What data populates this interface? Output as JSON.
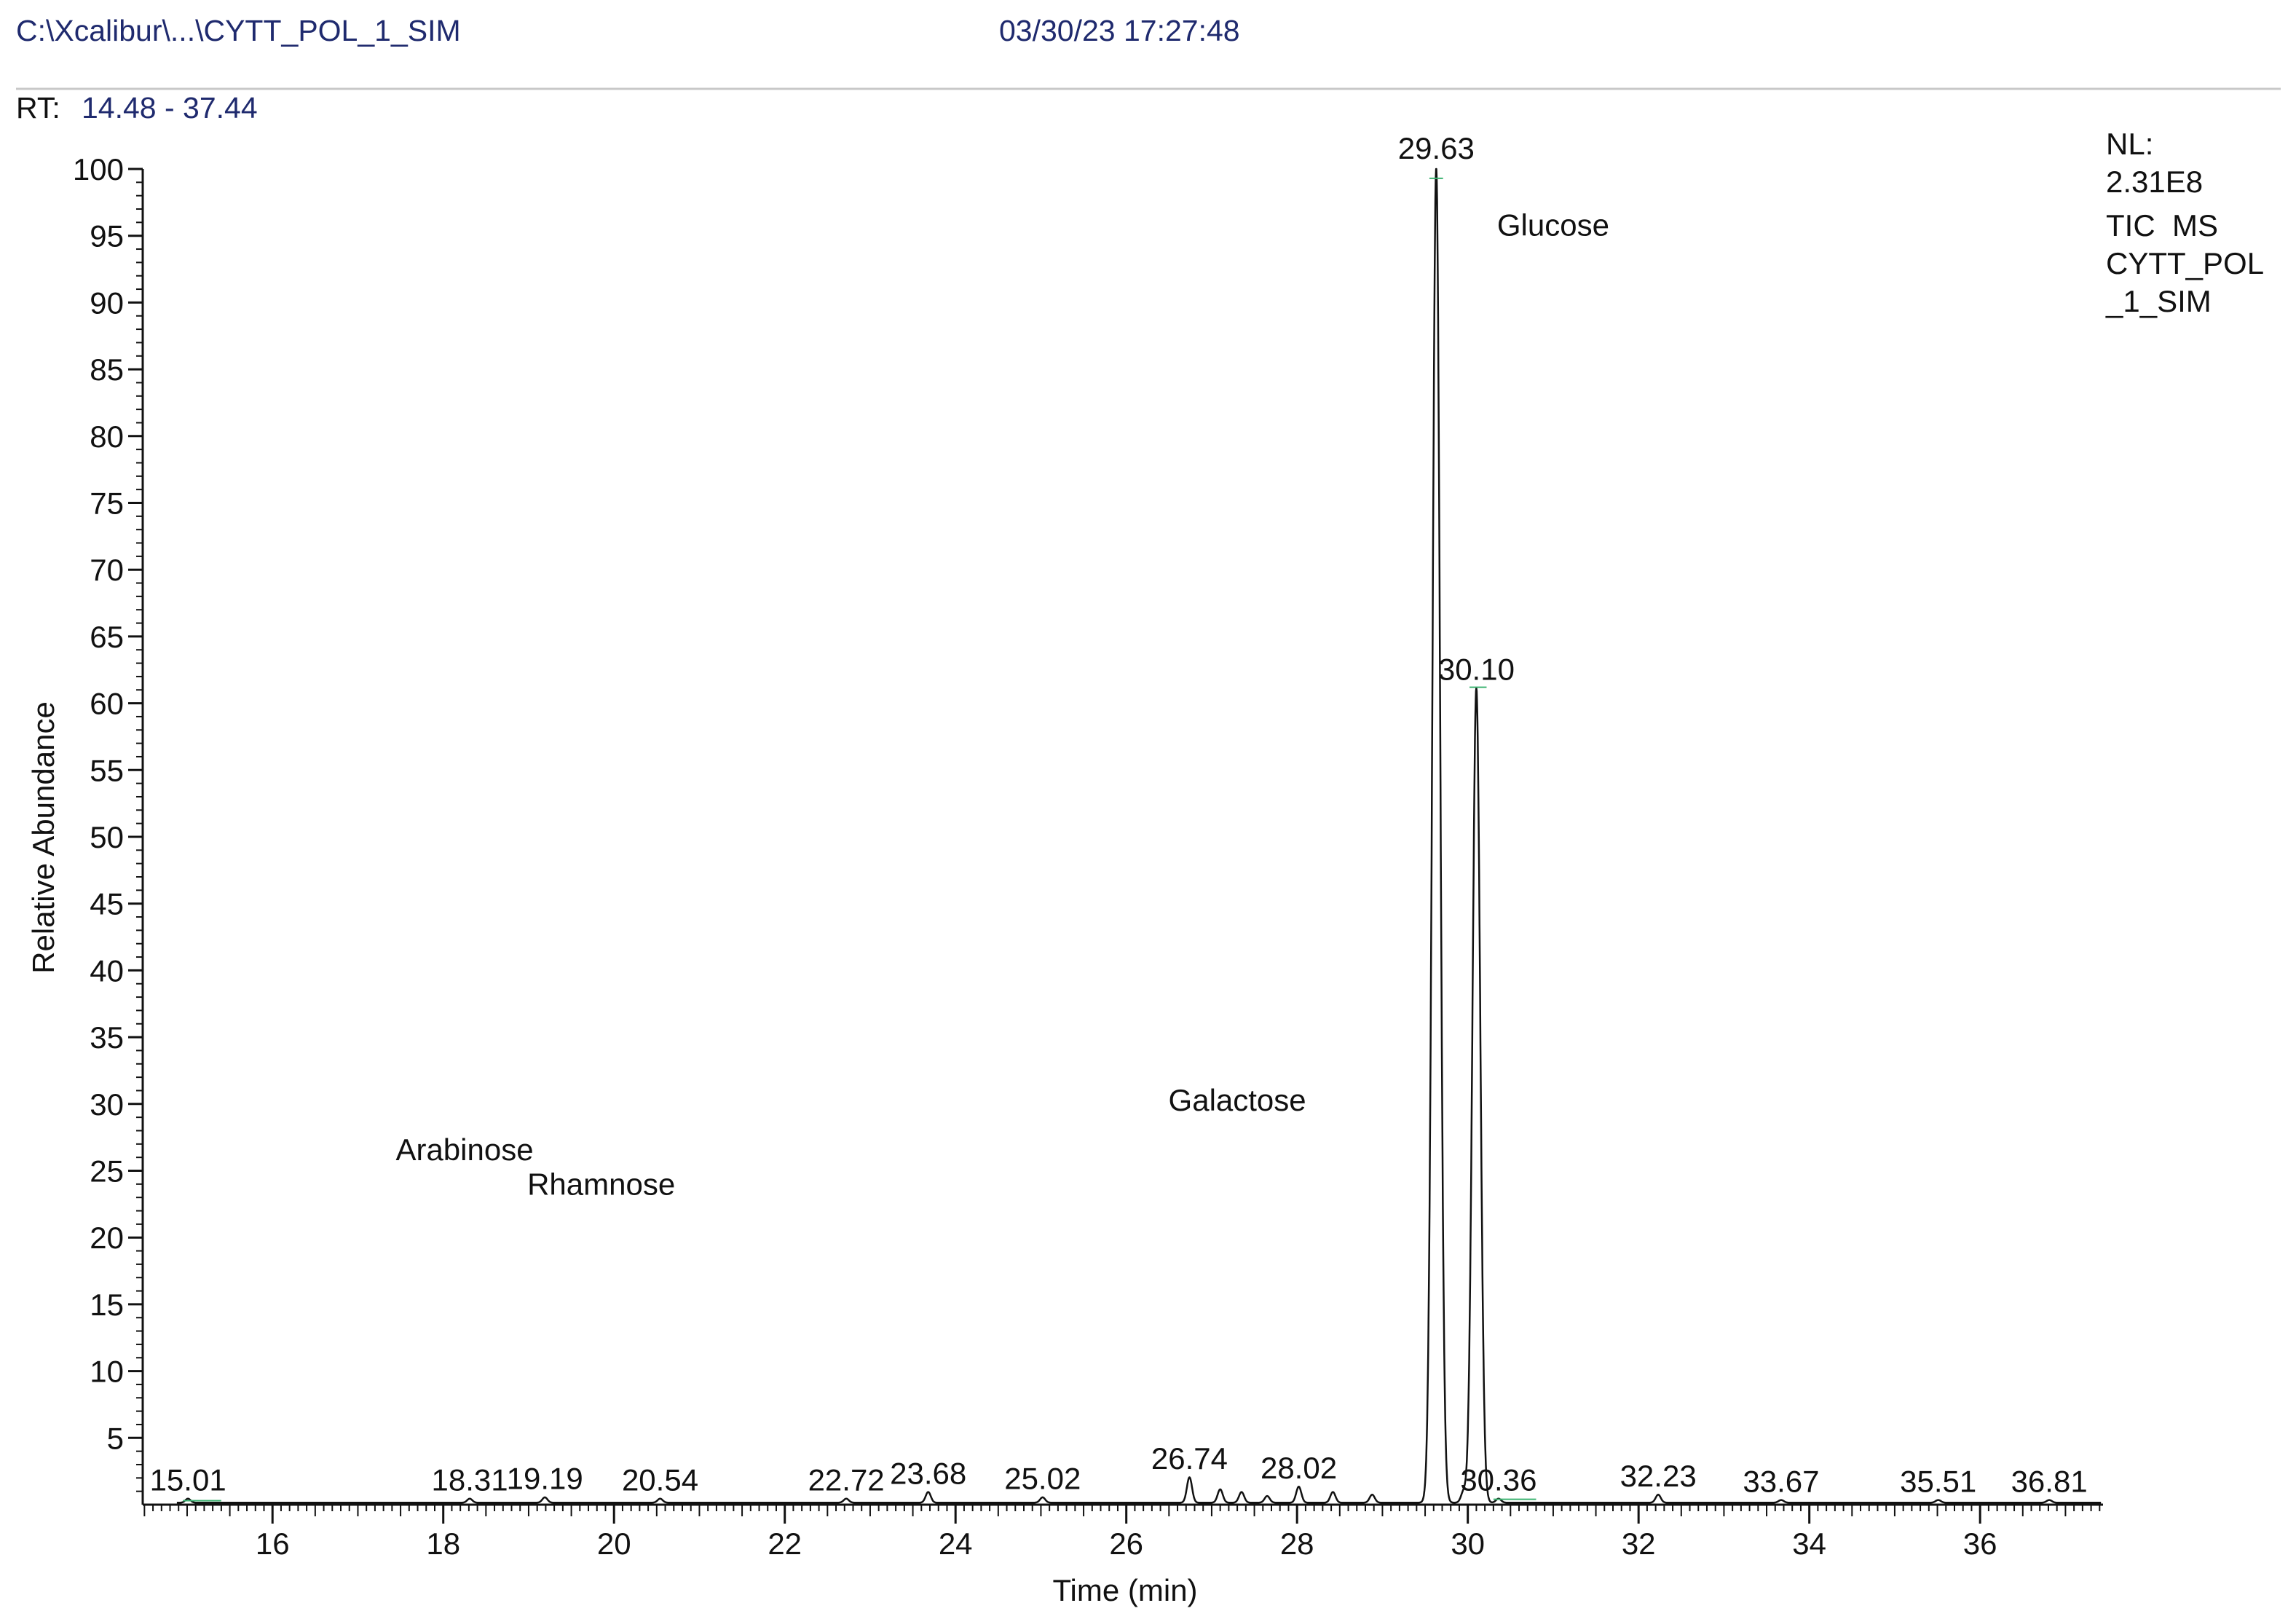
{
  "header": {
    "file_path": "C:\\Xcalibur\\...\\CYTT_POL_1_SIM",
    "timestamp": "03/30/23 17:27:48",
    "rt_label": "RT:",
    "rt_range": "14.48 - 37.44"
  },
  "info_box": {
    "nl_label": "NL:",
    "nl_value": "2.31E8",
    "scan_type": "TIC  MS",
    "file_line1": "CYTT_POL",
    "file_line2": "_1_SIM"
  },
  "colors": {
    "trace": "#111111",
    "header_text": "#1f2a6e",
    "baseline_fit": "#3cb371"
  },
  "chart_data": {
    "type": "line",
    "title": "",
    "xlabel": "Time (min)",
    "ylabel": "Relative Abundance",
    "xlim": [
      14.48,
      37.44
    ],
    "ylim": [
      0,
      100
    ],
    "x_ticks": [
      "16",
      "18",
      "20",
      "22",
      "24",
      "26",
      "28",
      "30",
      "32",
      "34",
      "36"
    ],
    "y_ticks": [
      "5",
      "10",
      "15",
      "20",
      "25",
      "30",
      "35",
      "40",
      "45",
      "50",
      "55",
      "60",
      "65",
      "70",
      "75",
      "80",
      "85",
      "90",
      "95",
      "100"
    ],
    "grid": false,
    "series": [
      {
        "peaks": [
          {
            "rt": 15.01,
            "abundance": 0.3
          },
          {
            "rt": 18.31,
            "abundance": 0.3
          },
          {
            "rt": 19.19,
            "abundance": 0.4
          },
          {
            "rt": 20.54,
            "abundance": 0.3
          },
          {
            "rt": 22.72,
            "abundance": 0.3
          },
          {
            "rt": 23.68,
            "abundance": 0.8
          },
          {
            "rt": 25.02,
            "abundance": 0.4
          },
          {
            "rt": 26.74,
            "abundance": 1.9
          },
          {
            "rt": 27.1,
            "abundance": 1.0
          },
          {
            "rt": 27.35,
            "abundance": 0.8
          },
          {
            "rt": 27.65,
            "abundance": 0.5
          },
          {
            "rt": 28.02,
            "abundance": 1.2
          },
          {
            "rt": 28.42,
            "abundance": 0.8
          },
          {
            "rt": 28.88,
            "abundance": 0.6
          },
          {
            "rt": 29.63,
            "abundance": 100
          },
          {
            "rt": 29.95,
            "abundance": 0.8
          },
          {
            "rt": 30.1,
            "abundance": 61
          },
          {
            "rt": 30.36,
            "abundance": 0.3
          },
          {
            "rt": 32.23,
            "abundance": 0.6
          },
          {
            "rt": 33.67,
            "abundance": 0.2
          },
          {
            "rt": 35.51,
            "abundance": 0.2
          },
          {
            "rt": 36.81,
            "abundance": 0.2
          }
        ]
      }
    ],
    "peak_labels": [
      {
        "text": "15.01",
        "rt": 15.01,
        "abundance": 0.3
      },
      {
        "text": "18.31",
        "rt": 18.31,
        "abundance": 0.3
      },
      {
        "text": "19.19",
        "rt": 19.19,
        "abundance": 0.4
      },
      {
        "text": "20.54",
        "rt": 20.54,
        "abundance": 0.3
      },
      {
        "text": "22.72",
        "rt": 22.72,
        "abundance": 0.3
      },
      {
        "text": "23.68",
        "rt": 23.68,
        "abundance": 0.8
      },
      {
        "text": "25.02",
        "rt": 25.02,
        "abundance": 0.4
      },
      {
        "text": "26.74",
        "rt": 26.74,
        "abundance": 1.9
      },
      {
        "text": "28.02",
        "rt": 28.02,
        "abundance": 1.2
      },
      {
        "text": "29.63",
        "rt": 29.63,
        "abundance": 100
      },
      {
        "text": "30.10",
        "rt": 30.1,
        "abundance": 61
      },
      {
        "text": "30.36",
        "rt": 30.36,
        "abundance": 0.3
      },
      {
        "text": "32.23",
        "rt": 32.23,
        "abundance": 0.6
      },
      {
        "text": "33.67",
        "rt": 33.67,
        "abundance": 0.2
      },
      {
        "text": "35.51",
        "rt": 35.51,
        "abundance": 0.2
      },
      {
        "text": "36.81",
        "rt": 36.81,
        "abundance": 0.2
      }
    ],
    "annotations": [
      {
        "text": "Glucose",
        "rt": 31.0,
        "abundance": 95
      },
      {
        "text": "Galactose",
        "rt": 27.3,
        "abundance": 29.5
      },
      {
        "text": "Arabinose",
        "rt": 18.25,
        "abundance": 25.8
      },
      {
        "text": "Rhamnose",
        "rt": 19.85,
        "abundance": 23.2
      }
    ]
  }
}
